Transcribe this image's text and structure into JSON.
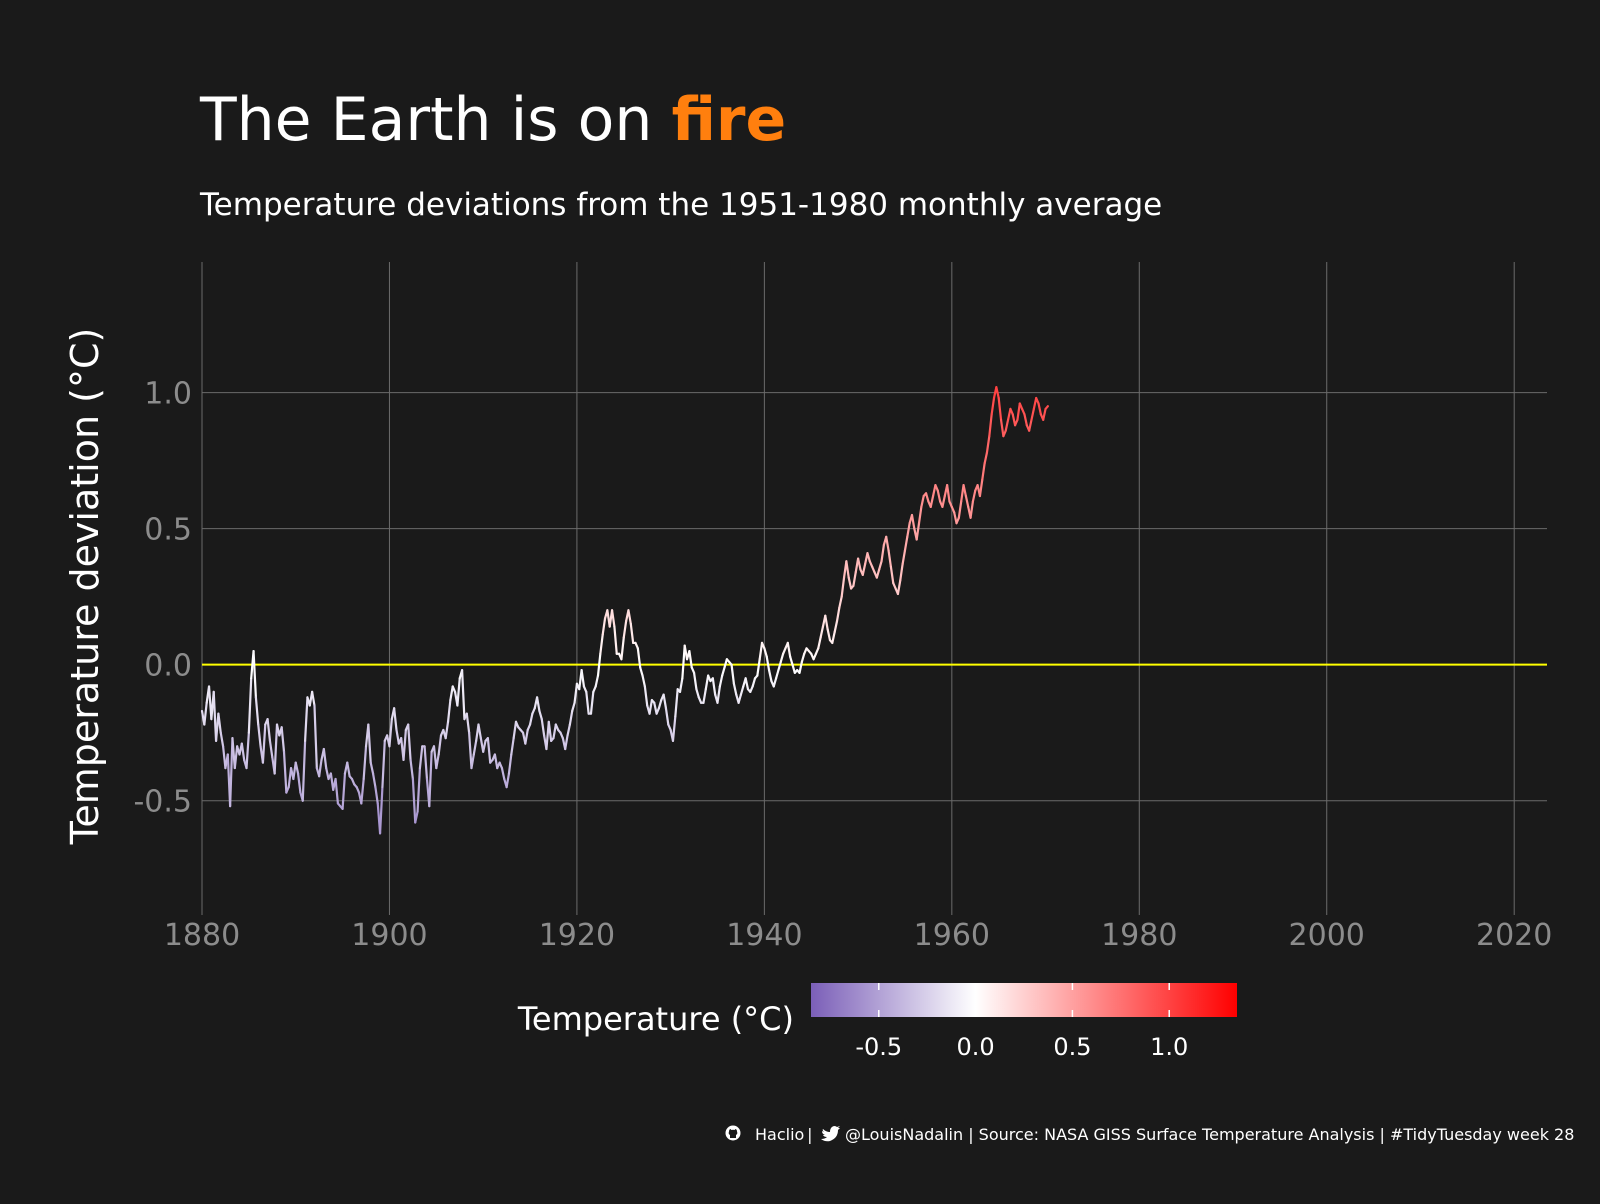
{
  "colors": {
    "background": "#1a1a1a",
    "title_text": "#ffffff",
    "title_accent": "#ff7f0e",
    "grid": "#6b6b6b",
    "tick_text": "#8c8c8c",
    "zero_line": "#ffff00",
    "scale_low": "#7b5fb8",
    "scale_mid": "#ffffff",
    "scale_high": "#ff0000"
  },
  "chart_data": {
    "type": "line",
    "title_prefix": "The Earth is on ",
    "title_accent": "fire",
    "subtitle": "Temperature deviations from the 1951-1980 monthly average",
    "xlabel": "",
    "ylabel": "Temperature deviation (°C)",
    "xlim": [
      1880,
      2023.5
    ],
    "ylim": [
      -0.92,
      1.48
    ],
    "x_ticks": [
      1880,
      1900,
      1920,
      1940,
      1960,
      1980,
      2000,
      2020
    ],
    "y_ticks": [
      -0.5,
      0.0,
      0.5,
      1.0
    ],
    "y_tick_labels": [
      "-0.5",
      "0.0",
      "0.5",
      "1.0"
    ],
    "grid": true,
    "reference_line": 0.0,
    "series_step_years": 0.25,
    "series_start_year": 1880,
    "series": [
      {
        "values": [
          -0.17,
          -0.22,
          -0.14,
          -0.08,
          -0.2,
          -0.1,
          -0.28,
          -0.18,
          -0.25,
          -0.3,
          -0.38,
          -0.33,
          -0.52,
          -0.27,
          -0.38,
          -0.3,
          -0.33,
          -0.29,
          -0.35,
          -0.38,
          -0.25,
          -0.05,
          0.05,
          -0.12,
          -0.22,
          -0.3,
          -0.36,
          -0.22,
          -0.2,
          -0.28,
          -0.34,
          -0.4,
          -0.22,
          -0.26,
          -0.23,
          -0.32,
          -0.47,
          -0.45,
          -0.38,
          -0.42,
          -0.36,
          -0.4,
          -0.47,
          -0.5,
          -0.28,
          -0.12,
          -0.15,
          -0.1,
          -0.15,
          -0.38,
          -0.41,
          -0.35,
          -0.31,
          -0.38,
          -0.42,
          -0.4,
          -0.46,
          -0.42,
          -0.51,
          -0.52,
          -0.53,
          -0.4,
          -0.36,
          -0.41,
          -0.42,
          -0.44,
          -0.45,
          -0.47,
          -0.51,
          -0.42,
          -0.3,
          -0.22,
          -0.36,
          -0.4,
          -0.45,
          -0.51,
          -0.62,
          -0.45,
          -0.28,
          -0.26,
          -0.3,
          -0.2,
          -0.16,
          -0.24,
          -0.29,
          -0.27,
          -0.35,
          -0.24,
          -0.22,
          -0.35,
          -0.42,
          -0.58,
          -0.54,
          -0.38,
          -0.3,
          -0.3,
          -0.42,
          -0.52,
          -0.32,
          -0.3,
          -0.38,
          -0.33,
          -0.26,
          -0.24,
          -0.27,
          -0.21,
          -0.13,
          -0.08,
          -0.1,
          -0.15,
          -0.05,
          -0.02,
          -0.2,
          -0.18,
          -0.25,
          -0.38,
          -0.33,
          -0.28,
          -0.22,
          -0.27,
          -0.32,
          -0.28,
          -0.27,
          -0.36,
          -0.35,
          -0.33,
          -0.38,
          -0.36,
          -0.38,
          -0.42,
          -0.45,
          -0.4,
          -0.33,
          -0.27,
          -0.21,
          -0.23,
          -0.24,
          -0.25,
          -0.29,
          -0.24,
          -0.22,
          -0.18,
          -0.16,
          -0.12,
          -0.17,
          -0.2,
          -0.26,
          -0.31,
          -0.21,
          -0.28,
          -0.27,
          -0.22,
          -0.24,
          -0.25,
          -0.27,
          -0.31,
          -0.26,
          -0.22,
          -0.17,
          -0.14,
          -0.07,
          -0.09,
          -0.02,
          -0.08,
          -0.1,
          -0.18,
          -0.18,
          -0.1,
          -0.08,
          -0.04,
          0.04,
          0.11,
          0.17,
          0.2,
          0.14,
          0.2,
          0.14,
          0.04,
          0.04,
          0.02,
          0.1,
          0.16,
          0.2,
          0.15,
          0.08,
          0.08,
          0.06,
          -0.01,
          -0.04,
          -0.08,
          -0.15,
          -0.18,
          -0.13,
          -0.14,
          -0.18,
          -0.16,
          -0.13,
          -0.11,
          -0.16,
          -0.22,
          -0.24,
          -0.28,
          -0.19,
          -0.09,
          -0.1,
          -0.05,
          0.07,
          0.02,
          0.05,
          -0.01,
          -0.03,
          -0.09,
          -0.12,
          -0.14,
          -0.14,
          -0.09,
          -0.04,
          -0.06,
          -0.05,
          -0.11,
          -0.14,
          -0.08,
          -0.04,
          -0.01,
          0.02,
          0.01,
          0.0,
          -0.07,
          -0.11,
          -0.14,
          -0.11,
          -0.08,
          -0.05,
          -0.09,
          -0.1,
          -0.08,
          -0.05,
          -0.04,
          0.02,
          0.08,
          0.06,
          0.03,
          -0.02,
          -0.06,
          -0.08,
          -0.05,
          -0.02,
          0.01,
          0.04,
          0.06,
          0.08,
          0.03,
          0.0,
          -0.03,
          -0.02,
          -0.03,
          0.01,
          0.04,
          0.06,
          0.05,
          0.04,
          0.02,
          0.04,
          0.06,
          0.1,
          0.14,
          0.18,
          0.13,
          0.09,
          0.08,
          0.12,
          0.16,
          0.21,
          0.25,
          0.32,
          0.38,
          0.32,
          0.28,
          0.29,
          0.34,
          0.39,
          0.35,
          0.33,
          0.37,
          0.41,
          0.38,
          0.36,
          0.34,
          0.32,
          0.35,
          0.38,
          0.44,
          0.47,
          0.42,
          0.36,
          0.3,
          0.28,
          0.26,
          0.31,
          0.37,
          0.42,
          0.47,
          0.52,
          0.55,
          0.5,
          0.46,
          0.52,
          0.58,
          0.62,
          0.63,
          0.6,
          0.58,
          0.62,
          0.66,
          0.64,
          0.6,
          0.58,
          0.62,
          0.66,
          0.6,
          0.58,
          0.56,
          0.52,
          0.54,
          0.6,
          0.66,
          0.62,
          0.58,
          0.54,
          0.6,
          0.64,
          0.66,
          0.62,
          0.68,
          0.74,
          0.78,
          0.84,
          0.92,
          0.98,
          1.02,
          0.98,
          0.9,
          0.84,
          0.86,
          0.9,
          0.94,
          0.92,
          0.88,
          0.9,
          0.96,
          0.94,
          0.92,
          0.88,
          0.86,
          0.9,
          0.94,
          0.98,
          0.96,
          0.92,
          0.9,
          0.94,
          0.95
        ]
      }
    ]
  },
  "legend": {
    "title": "Temperature (°C)",
    "min": -0.85,
    "max": 1.35,
    "ticks": [
      -0.5,
      0.0,
      0.5,
      1.0
    ],
    "tick_labels": [
      "-0.5",
      "0.0",
      "0.5",
      "1.0"
    ]
  },
  "caption": {
    "github_icon": "github-icon",
    "github_handle": "Haclio",
    "separator_1": " | ",
    "twitter_icon": "twitter-icon",
    "rest": "@LouisNadalin | Source: NASA GISS Surface Temperature Analysis | #TidyTuesday week 28"
  }
}
